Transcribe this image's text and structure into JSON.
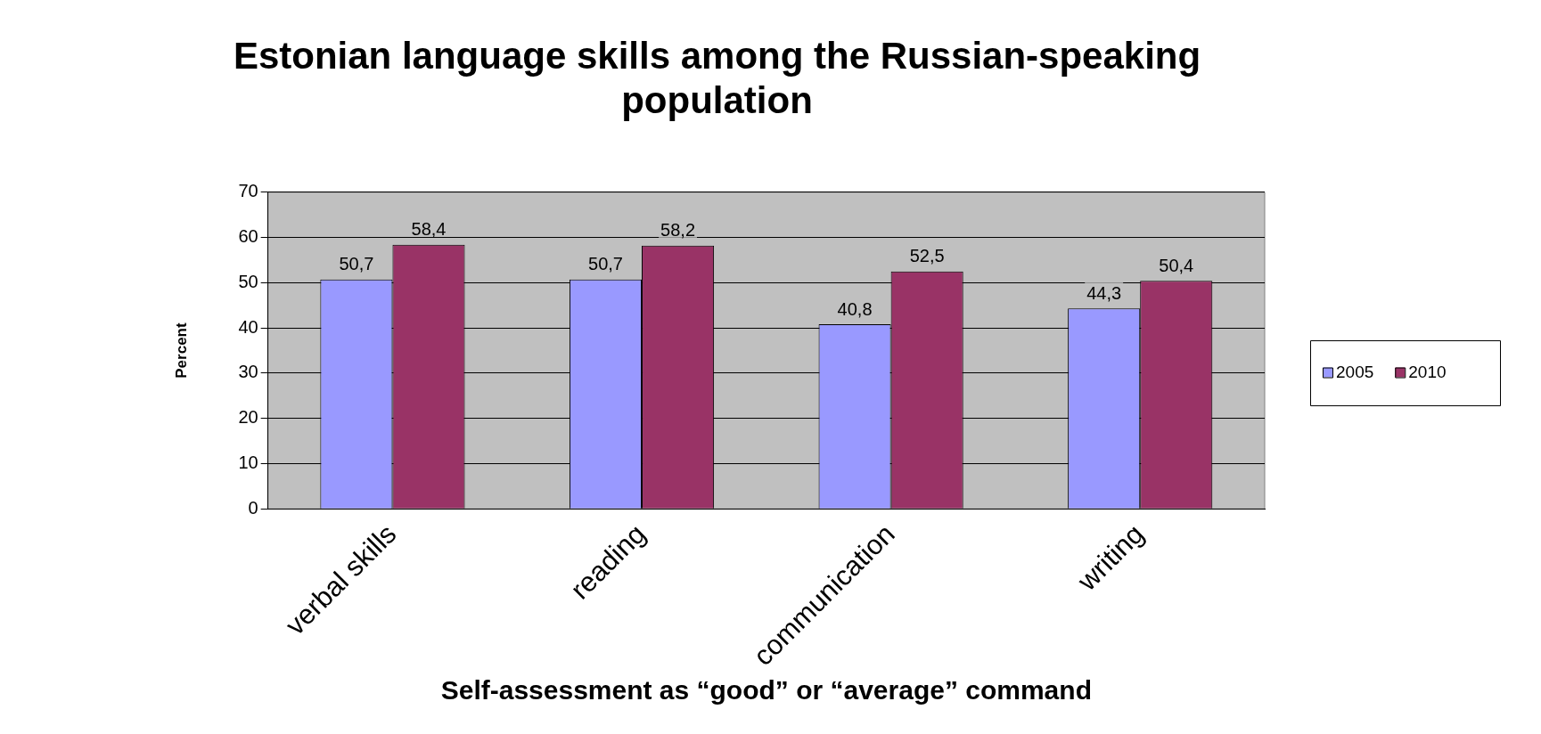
{
  "chart_data": {
    "type": "bar",
    "title": "Estonian language skills among the Russian-speaking population",
    "xlabel": "Self-assessment as “good” or “average” command",
    "ylabel": "Percent",
    "categories": [
      "verbal skills",
      "reading",
      "communication",
      "writing"
    ],
    "series": [
      {
        "name": "2005",
        "color": "#9999ff",
        "values": [
          50.7,
          50.7,
          40.8,
          44.3
        ],
        "value_labels": [
          "50,7",
          "50,7",
          "40,8",
          "44,3"
        ]
      },
      {
        "name": "2010",
        "color": "#993366",
        "values": [
          58.4,
          58.2,
          52.5,
          50.4
        ],
        "value_labels": [
          "58,4",
          "58,2",
          "52,5",
          "50,4"
        ]
      }
    ],
    "ylim": [
      0,
      70
    ],
    "yticks": [
      0,
      10,
      20,
      30,
      40,
      50,
      60,
      70
    ],
    "grid": "y",
    "legend": "right"
  }
}
